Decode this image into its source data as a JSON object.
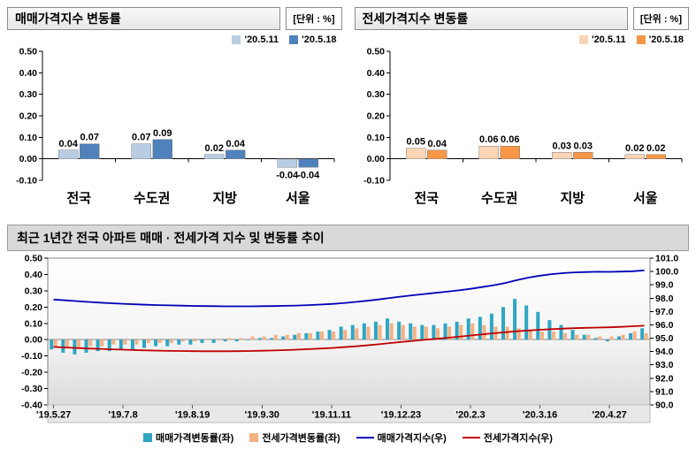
{
  "chart_data": [
    {
      "type": "bar",
      "title": "매매가격지수 변동률",
      "unit_label": "[단위 : %]",
      "categories": [
        "전국",
        "수도권",
        "지방",
        "서울"
      ],
      "series": [
        {
          "id": "sale-20-5-11",
          "name": "'20.5.11",
          "color": "#b8cce4",
          "values": [
            0.04,
            0.07,
            0.02,
            -0.04
          ]
        },
        {
          "id": "sale-20-5-18",
          "name": "'20.5.18",
          "color": "#4f81bd",
          "values": [
            0.07,
            0.09,
            0.04,
            -0.04
          ]
        }
      ],
      "ylim": [
        -0.1,
        0.5
      ],
      "ytick_step": 0.1,
      "legend_position": "top-right",
      "grid": false
    },
    {
      "type": "bar",
      "title": "전세가격지수 변동률",
      "unit_label": "[단위 : %]",
      "categories": [
        "전국",
        "수도권",
        "지방",
        "서울"
      ],
      "series": [
        {
          "id": "jeonse-20-5-11",
          "name": "'20.5.11",
          "color": "#fcd5b4",
          "values": [
            0.05,
            0.06,
            0.03,
            0.02
          ]
        },
        {
          "id": "jeonse-20-5-18",
          "name": "'20.5.18",
          "color": "#f79646",
          "values": [
            0.04,
            0.06,
            0.03,
            0.02
          ]
        }
      ],
      "ylim": [
        -0.1,
        0.5
      ],
      "ytick_step": 0.1,
      "legend_position": "top-right",
      "grid": false
    },
    {
      "type": "combo",
      "title": "최근 1년간 전국 아파트 매매 · 전세가격 지수 및 변동률 추이",
      "x_tick_labels": [
        "'19.5.27",
        "'19.7.8",
        "'19.8.19",
        "'19.9.30",
        "'19.11.11",
        "'19.12.23",
        "'20.2.3",
        "'20.3.16",
        "'20.4.27"
      ],
      "x_tick_every": 6,
      "n_points": 52,
      "left_axis": {
        "min": -0.4,
        "max": 0.5,
        "step": 0.1
      },
      "right_axis": {
        "min": 90.0,
        "max": 101.0,
        "step": 1.0
      },
      "bar_series": [
        {
          "id": "sale-change",
          "name": "매매가격변동률(좌)",
          "axis": "left",
          "color": "#2ea6c4",
          "values": [
            -0.06,
            -0.08,
            -0.09,
            -0.08,
            -0.07,
            -0.07,
            -0.06,
            -0.06,
            -0.05,
            -0.04,
            -0.04,
            -0.03,
            -0.03,
            -0.02,
            -0.02,
            -0.01,
            -0.01,
            0.0,
            0.01,
            0.01,
            0.02,
            0.03,
            0.04,
            0.05,
            0.06,
            0.08,
            0.09,
            0.1,
            0.11,
            0.13,
            0.11,
            0.1,
            0.09,
            0.09,
            0.1,
            0.11,
            0.13,
            0.14,
            0.16,
            0.2,
            0.25,
            0.21,
            0.17,
            0.12,
            0.09,
            0.06,
            0.03,
            0.01,
            -0.01,
            0.02,
            0.04,
            0.07
          ]
        },
        {
          "id": "jeonse-change",
          "name": "전세가격변동률(좌)",
          "axis": "left",
          "color": "#f4b183",
          "values": [
            -0.04,
            -0.05,
            -0.05,
            -0.04,
            -0.04,
            -0.03,
            -0.03,
            -0.03,
            -0.02,
            -0.02,
            -0.02,
            -0.01,
            -0.01,
            0.0,
            0.0,
            0.01,
            0.01,
            0.02,
            0.02,
            0.03,
            0.03,
            0.04,
            0.04,
            0.05,
            0.05,
            0.06,
            0.07,
            0.08,
            0.09,
            0.1,
            0.09,
            0.08,
            0.08,
            0.07,
            0.08,
            0.09,
            0.1,
            0.09,
            0.08,
            0.08,
            0.07,
            0.06,
            0.05,
            0.05,
            0.04,
            0.03,
            0.03,
            0.02,
            0.02,
            0.03,
            0.05,
            0.04
          ]
        }
      ],
      "line_series": [
        {
          "id": "sale-index",
          "name": "매매가격지수(우)",
          "axis": "right",
          "color": "#0000b8",
          "values": [
            97.9,
            97.84,
            97.78,
            97.72,
            97.67,
            97.62,
            97.58,
            97.54,
            97.51,
            97.48,
            97.46,
            97.44,
            97.42,
            97.41,
            97.4,
            97.39,
            97.39,
            97.39,
            97.4,
            97.41,
            97.43,
            97.45,
            97.48,
            97.52,
            97.57,
            97.63,
            97.71,
            97.8,
            97.9,
            98.01,
            98.12,
            98.22,
            98.31,
            98.4,
            98.49,
            98.59,
            98.7,
            98.83,
            98.97,
            99.14,
            99.35,
            99.54,
            99.69,
            99.8,
            99.88,
            99.93,
            99.96,
            99.98,
            99.97,
            99.99,
            100.02,
            100.08
          ]
        },
        {
          "id": "jeonse-index",
          "name": "전세가격지수(우)",
          "axis": "right",
          "color": "#c00000",
          "values": [
            94.35,
            94.31,
            94.27,
            94.23,
            94.2,
            94.17,
            94.14,
            94.11,
            94.09,
            94.07,
            94.05,
            94.04,
            94.03,
            94.02,
            94.02,
            94.02,
            94.03,
            94.04,
            94.06,
            94.08,
            94.11,
            94.14,
            94.18,
            94.22,
            94.27,
            94.33,
            94.39,
            94.46,
            94.54,
            94.63,
            94.72,
            94.8,
            94.88,
            94.95,
            95.03,
            95.11,
            95.2,
            95.29,
            95.37,
            95.45,
            95.52,
            95.58,
            95.63,
            95.68,
            95.72,
            95.75,
            95.78,
            95.8,
            95.82,
            95.85,
            95.9,
            95.94
          ]
        }
      ],
      "legend_position": "bottom"
    }
  ]
}
